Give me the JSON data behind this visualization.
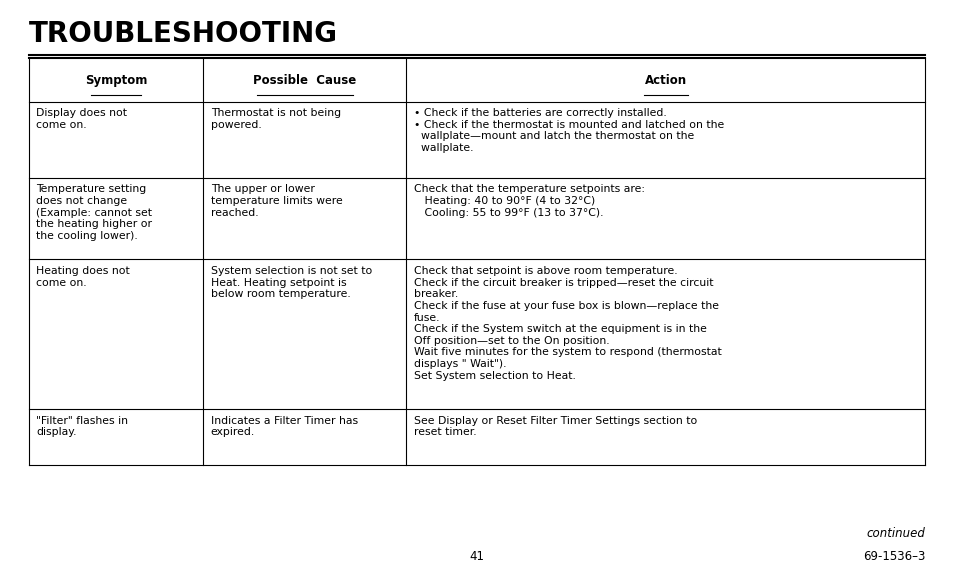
{
  "title": "TROUBLESHOOTING",
  "bg_color": "#ffffff",
  "text_color": "#000000",
  "header_row": [
    "Symptom",
    "Possible  Cause",
    "Action"
  ],
  "rows": [
    {
      "symptom": "Display does not\ncome on.",
      "cause": "Thermostat is not being\npowered.",
      "action": "• Check if the batteries are correctly installed.\n• Check if the thermostat is mounted and latched on the\n  wallplate—mount and latch the thermostat on the\n  wallplate."
    },
    {
      "symptom": "Temperature setting\ndoes not change\n(Example: cannot set\nthe heating higher or\nthe cooling lower).",
      "cause": "The upper or lower\ntemperature limits were\nreached.",
      "action": "Check that the temperature setpoints are:\n   Heating: 40 to 90°F (4 to 32°C)\n   Cooling: 55 to 99°F (13 to 37°C)."
    },
    {
      "symptom": "Heating does not\ncome on.",
      "cause": "System selection is not set to\nHeat. Heating setpoint is\nbelow room temperature.",
      "action": "Check that setpoint is above room temperature.\nCheck if the circuit breaker is tripped—reset the circuit\nbreaker.\nCheck if the fuse at your fuse box is blown—replace the\nfuse.\nCheck if the System switch at the equipment is in the\nOff position—set to the On position.\nWait five minutes for the system to respond (thermostat\ndisplays \" Wait\").\nSet System selection to Heat."
    },
    {
      "symptom": "\"Filter\" flashes in\ndisplay.",
      "cause": "Indicates a Filter Timer has\nexpired.",
      "action": "See Display or Reset Filter Timer Settings section to\nreset timer."
    }
  ],
  "footer_continued": "continued",
  "footer_page": "41",
  "footer_ref": "69-1536–3"
}
